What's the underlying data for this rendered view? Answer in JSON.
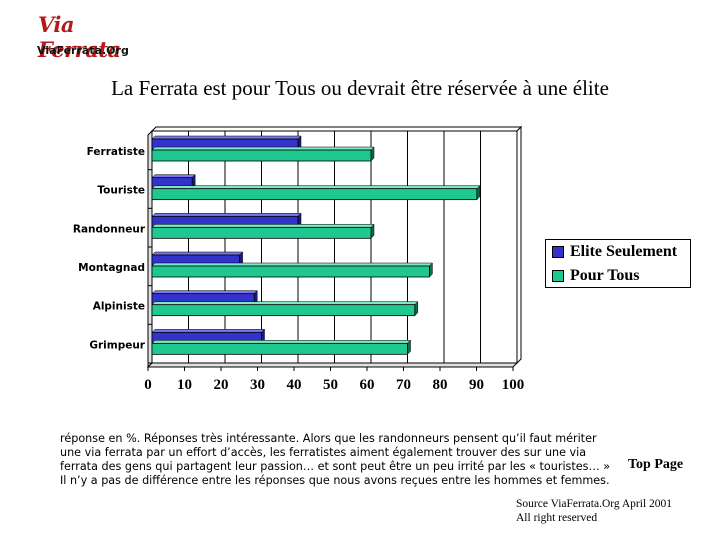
{
  "logo": {
    "main": "Via Ferrata",
    "sub": "ViaFerrata.Org"
  },
  "title": "La Ferrata est pour Tous ou devrait être réservée à une élite",
  "chart_data": {
    "type": "bar",
    "orientation": "horizontal",
    "categories": [
      "Ferratiste",
      "Touriste",
      "Randonneur",
      "Montagnad",
      "Alpiniste",
      "Grimpeur"
    ],
    "series": [
      {
        "name": "Elite Seulement",
        "color": "#3333cc",
        "values": [
          40,
          11,
          40,
          24,
          28,
          30
        ]
      },
      {
        "name": "Pour Tous",
        "color": "#1fc791",
        "values": [
          60,
          89,
          60,
          76,
          72,
          70
        ]
      }
    ],
    "xlim": [
      0,
      100
    ],
    "xticks": [
      "0",
      "10",
      "20",
      "30",
      "40",
      "50",
      "60",
      "70",
      "80",
      "90",
      "100"
    ],
    "xlabel": "",
    "ylabel": "",
    "grid": "vertical",
    "legend_position": "right"
  },
  "note": "réponse en %. Réponses très intéressante. Alors que les randonneurs pensent qu’il faut mériter une via ferrata par un effort d’accès, les ferratistes aiment également trouver des sur une via ferrata des gens qui partagent leur passion… et sont peut être un peu irrité par les « touristes… » Il n’y a pas de différence entre les réponses que nous avons reçues entre les hommes et femmes.",
  "top_page": "Top Page",
  "source": {
    "line1": "Source ViaFerrata.Org April 2001",
    "line2": "All right reserved"
  }
}
